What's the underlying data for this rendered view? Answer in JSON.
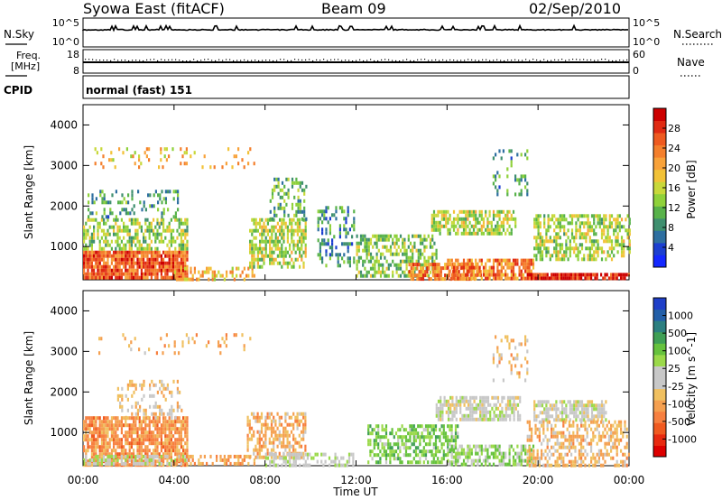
{
  "header": {
    "radar": "Syowa East (fitACF)",
    "beam": "Beam 09",
    "date": "02/Sep/2010"
  },
  "noise_panel": {
    "left_label": "N.Sky",
    "right_label": "N.Search",
    "left_ticks": [
      "10^5",
      "10^0"
    ],
    "right_ticks": [
      "10^5",
      "10^0"
    ]
  },
  "freq_panel": {
    "left_label_1": "Freq.",
    "left_label_2": "[MHz]",
    "right_label": "Nave",
    "left_ticks": [
      "18",
      "8"
    ],
    "right_ticks": [
      "60",
      "0"
    ]
  },
  "cpid": {
    "label": "CPID",
    "value": "normal (fast) 151"
  },
  "colorbars": {
    "power": {
      "label": "Power [dB]",
      "ticks": [
        "4",
        "8",
        "12",
        "16",
        "20",
        "24",
        "28"
      ],
      "colors": [
        "#1428ff",
        "#1c3fd0",
        "#2e6fa0",
        "#3f8f6f",
        "#58b24a",
        "#8fd13a",
        "#c8d83a",
        "#f2c237",
        "#f8a23a",
        "#f47f2c",
        "#ee5a20",
        "#e02a12",
        "#cc0000"
      ]
    },
    "velocity": {
      "label": "Velocity [m s^-1]",
      "ticks": [
        "1000",
        "500",
        "100",
        "25",
        "-25",
        "-100",
        "-500",
        "-1000"
      ],
      "colors": [
        "#1f3fc8",
        "#235fa8",
        "#2c7f80",
        "#3f9f55",
        "#66c23d",
        "#9bd94a",
        "#c8c8c8",
        "#c8c8c8",
        "#f0c060",
        "#f5a050",
        "#f78040",
        "#f05a20",
        "#e82a10",
        "#dd0000"
      ]
    }
  },
  "chart_data": [
    {
      "type": "heatmap",
      "title": "Power",
      "ylabel": "Slant Range [km]",
      "xlabel": "Time UT",
      "x_ticks": [
        "00:00",
        "04:00",
        "08:00",
        "12:00",
        "16:00",
        "20:00",
        "00:00"
      ],
      "y_ticks": [
        "1000",
        "2000",
        "3000",
        "4000"
      ],
      "xlim": [
        0,
        24
      ],
      "ylim": [
        180,
        4500
      ],
      "colorbar_label": "Power [dB]",
      "clim": [
        0,
        30
      ],
      "regions": [
        {
          "t0": 0.0,
          "t1": 4.6,
          "r0": 200,
          "r1": 900,
          "v": 24,
          "dense": 0.9
        },
        {
          "t0": 0.0,
          "t1": 4.6,
          "r0": 900,
          "r1": 1700,
          "v": 13,
          "dense": 0.55
        },
        {
          "t0": 0.2,
          "t1": 4.2,
          "r0": 1700,
          "r1": 2400,
          "v": 9,
          "dense": 0.25
        },
        {
          "t0": 0.5,
          "t1": 7.5,
          "r0": 2950,
          "r1": 3450,
          "v": 18,
          "dense": 0.12
        },
        {
          "t0": 4.0,
          "t1": 7.5,
          "r0": 200,
          "r1": 500,
          "v": 18,
          "dense": 0.45
        },
        {
          "t0": 7.3,
          "t1": 9.8,
          "r0": 500,
          "r1": 1700,
          "v": 14,
          "dense": 0.6
        },
        {
          "t0": 8.2,
          "t1": 9.8,
          "r0": 1700,
          "r1": 2700,
          "v": 10,
          "dense": 0.35
        },
        {
          "t0": 10.3,
          "t1": 11.9,
          "r0": 500,
          "r1": 2000,
          "v": 8,
          "dense": 0.3
        },
        {
          "t0": 12.0,
          "t1": 15.5,
          "r0": 300,
          "r1": 1300,
          "v": 12,
          "dense": 0.55
        },
        {
          "t0": 14.3,
          "t1": 17.5,
          "r0": 200,
          "r1": 600,
          "v": 22,
          "dense": 0.7
        },
        {
          "t0": 15.3,
          "t1": 19.0,
          "r0": 1300,
          "r1": 1900,
          "v": 14,
          "dense": 0.6
        },
        {
          "t0": 16.0,
          "t1": 19.8,
          "r0": 200,
          "r1": 700,
          "v": 22,
          "dense": 0.75
        },
        {
          "t0": 18.0,
          "t1": 19.5,
          "r0": 2300,
          "r1": 3400,
          "v": 9,
          "dense": 0.2
        },
        {
          "t0": 19.8,
          "t1": 24.0,
          "r0": 700,
          "r1": 1800,
          "v": 14,
          "dense": 0.55
        },
        {
          "t0": 19.5,
          "t1": 24.0,
          "r0": 200,
          "r1": 350,
          "v": 27,
          "dense": 0.85
        }
      ]
    },
    {
      "type": "heatmap",
      "title": "Velocity",
      "ylabel": "Slant Range [km]",
      "xlabel": "Time UT",
      "x_ticks": [
        "00:00",
        "04:00",
        "08:00",
        "12:00",
        "16:00",
        "20:00",
        "00:00"
      ],
      "y_ticks": [
        "1000",
        "2000",
        "3000",
        "4000"
      ],
      "xlim": [
        0,
        24
      ],
      "ylim": [
        180,
        4500
      ],
      "colorbar_label": "Velocity [m s^-1]",
      "clim": [
        -1000,
        1000
      ],
      "regions": [
        {
          "t0": 0.0,
          "t1": 4.6,
          "r0": 200,
          "r1": 1400,
          "v": -420,
          "dense": 0.8
        },
        {
          "t0": 0.0,
          "t1": 4.6,
          "r0": 200,
          "r1": 450,
          "v": 80,
          "dense": 0.6
        },
        {
          "t0": 1.5,
          "t1": 4.3,
          "r0": 1400,
          "r1": 2300,
          "v": -200,
          "dense": 0.3
        },
        {
          "t0": 0.5,
          "t1": 7.5,
          "r0": 2950,
          "r1": 3450,
          "v": -300,
          "dense": 0.1
        },
        {
          "t0": 4.0,
          "t1": 7.5,
          "r0": 200,
          "r1": 450,
          "v": -350,
          "dense": 0.5
        },
        {
          "t0": 7.2,
          "t1": 9.8,
          "r0": 400,
          "r1": 1500,
          "v": -300,
          "dense": 0.55
        },
        {
          "t0": 8.0,
          "t1": 10.0,
          "r0": 200,
          "r1": 500,
          "v": 90,
          "dense": 0.65
        },
        {
          "t0": 10.0,
          "t1": 12.0,
          "r0": 200,
          "r1": 500,
          "v": 60,
          "dense": 0.4
        },
        {
          "t0": 12.5,
          "t1": 16.5,
          "r0": 300,
          "r1": 1200,
          "v": 300,
          "dense": 0.55
        },
        {
          "t0": 15.5,
          "t1": 19.2,
          "r0": 1300,
          "r1": 1900,
          "v": 0,
          "dense": 0.7
        },
        {
          "t0": 16.0,
          "t1": 19.8,
          "r0": 200,
          "r1": 700,
          "v": 200,
          "dense": 0.6
        },
        {
          "t0": 18.0,
          "t1": 19.5,
          "r0": 2300,
          "r1": 3400,
          "v": -250,
          "dense": 0.2
        },
        {
          "t0": 19.8,
          "t1": 23.0,
          "r0": 1300,
          "r1": 1800,
          "v": 0,
          "dense": 0.7
        },
        {
          "t0": 19.5,
          "t1": 24.0,
          "r0": 200,
          "r1": 1300,
          "v": -250,
          "dense": 0.5
        }
      ]
    }
  ]
}
